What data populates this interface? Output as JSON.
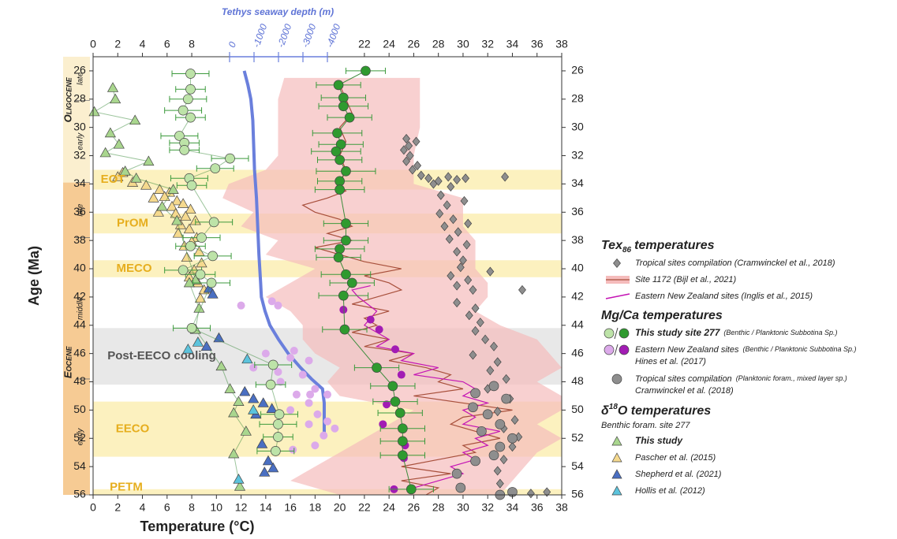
{
  "chart_data": {
    "type": "scatter",
    "x2label": "Tethys seaway depth (m)",
    "xlabel": "Temperature (°C)",
    "ylabel": "Age (Ma)",
    "xlim": [
      0,
      38
    ],
    "xticks": [
      0,
      2,
      4,
      6,
      8,
      10,
      12,
      14,
      16,
      18,
      20,
      22,
      24,
      26,
      28,
      30,
      32,
      34,
      36,
      38
    ],
    "x2lim": [
      5580,
      -13580
    ],
    "x2ticks": [
      0,
      -1000,
      -2000,
      -3000,
      -4000
    ],
    "ylim": [
      56,
      25
    ],
    "yticks": [
      26,
      28,
      30,
      32,
      34,
      36,
      38,
      40,
      42,
      44,
      46,
      48,
      50,
      52,
      54,
      56
    ],
    "epochs": [
      {
        "label": "Oligocene",
        "from": 25,
        "to": 33.9,
        "color": "#fbefcf"
      },
      {
        "label": "Eocene",
        "from": 33.9,
        "to": 56,
        "color": "#f6cb94"
      }
    ],
    "stages": [
      {
        "label": "late",
        "from": 25,
        "to": 28.1
      },
      {
        "label": "early",
        "from": 28.1,
        "to": 33.9
      },
      {
        "label": "late",
        "from": 33.9,
        "to": 37.8
      },
      {
        "label": "middle",
        "from": 37.8,
        "to": 47.8
      },
      {
        "label": "early",
        "from": 47.8,
        "to": 56
      }
    ],
    "bands": [
      {
        "label": "EOT",
        "from": 33.0,
        "to": 34.4,
        "color": "#fbeeb4"
      },
      {
        "label": "PrOM",
        "from": 36.1,
        "to": 37.5,
        "color": "#fbeeb4"
      },
      {
        "label": "MECO",
        "from": 39.4,
        "to": 40.6,
        "color": "#fbeeb4"
      },
      {
        "label": "Post-EECO cooling",
        "from": 44.2,
        "to": 48.2,
        "color": "#e4e4e4"
      },
      {
        "label": "EECO",
        "from": 49.4,
        "to": 53.3,
        "color": "#fbeeb4"
      },
      {
        "label": "PETM",
        "from": 55.6,
        "to": 56,
        "color": "#fbeeb4"
      }
    ],
    "series": [
      {
        "marker": "area",
        "color": "#f5bcbc",
        "y": [
          26.5,
          28,
          30,
          32,
          33,
          34,
          35,
          36,
          37,
          38,
          39,
          40,
          41,
          42,
          43,
          44,
          45,
          46,
          47,
          48,
          49,
          50,
          51,
          52,
          53,
          54,
          55,
          56
        ],
        "x_min": [
          15.5,
          15,
          15,
          15,
          14,
          11,
          10.5,
          13,
          12,
          15,
          14,
          18,
          16,
          14,
          16,
          17,
          17,
          18,
          20,
          19,
          20,
          26,
          24,
          22,
          20,
          18,
          16,
          20
        ],
        "x_max": [
          26.5,
          26.5,
          26.5,
          26,
          26,
          26,
          30,
          30,
          30,
          31,
          31,
          31,
          32,
          32,
          31,
          33,
          36,
          37,
          38,
          36,
          38,
          38,
          36,
          38,
          36,
          35,
          34,
          33
        ]
      },
      {
        "marker": "line",
        "color": "#a8503c",
        "y": [
          27,
          28,
          29,
          30,
          31,
          32,
          33,
          34,
          34.5,
          35,
          35.5,
          36,
          36.5,
          37,
          37.5,
          38,
          38.5,
          39,
          39.5,
          40,
          40.5,
          41,
          41.5,
          42,
          42.5,
          43,
          43.5,
          44,
          44.5,
          45,
          45.5,
          46,
          46.5,
          47,
          47.5,
          48,
          48.5,
          49,
          49.5,
          50,
          50.5,
          51,
          51.5,
          52,
          52.5,
          53,
          53.5,
          54,
          54.5,
          55,
          55.5,
          56
        ],
        "x": [
          20,
          20.5,
          21,
          20,
          20.5,
          20,
          20.5,
          20,
          20.5,
          19,
          17,
          18,
          20,
          21,
          19,
          21,
          18,
          20,
          22,
          25,
          22,
          24,
          25,
          23,
          21,
          24,
          22,
          23,
          21,
          24,
          22,
          26,
          24,
          27,
          29,
          28,
          30,
          26,
          30,
          34,
          30,
          29,
          31,
          33,
          30,
          31,
          28,
          25,
          29,
          25,
          28,
          27
        ]
      },
      {
        "marker": "line",
        "color": "#c414b4",
        "y": [
          41.2,
          41.5,
          42,
          43,
          44,
          45,
          45.5,
          46,
          46.5,
          47,
          47.5,
          48,
          48.5,
          49,
          49.5,
          50,
          50.5,
          51,
          51.5,
          52,
          52.5,
          53,
          53.5,
          54,
          54.5,
          55,
          55.5
        ],
        "x": [
          22.5,
          21,
          21.5,
          23,
          22,
          24,
          23,
          26,
          25,
          28,
          26,
          30,
          31,
          30,
          32,
          30,
          31,
          30,
          33,
          31,
          32,
          30,
          31,
          29,
          30,
          28,
          26
        ]
      },
      {
        "marker": "line",
        "color": "#6a7fdc",
        "axis": "x2",
        "y": [
          26,
          27,
          28,
          29.5,
          31,
          33,
          35,
          37,
          39,
          41,
          42,
          43,
          44,
          45,
          46,
          47,
          47.8,
          48.5,
          49.5,
          51,
          52
        ],
        "x": [
          -600,
          -750,
          -870,
          -950,
          -980,
          -1020,
          -1100,
          -1150,
          -1200,
          -1270,
          -1300,
          -1450,
          -1650,
          -2000,
          -2400,
          -2900,
          -3350,
          -3800,
          -3870,
          -3870,
          -3870
        ]
      },
      {
        "marker": "diamond",
        "color": "#8e8e8e",
        "y": [
          31.3,
          31.6,
          32.0,
          32.4,
          32.7,
          33.0,
          33.4,
          33.6,
          33.8,
          33.5,
          33.7,
          34.0,
          33.6,
          34.2,
          33.5,
          34.8,
          35.5,
          36.1,
          36.5,
          37.0,
          37.4,
          37.9,
          38.3,
          38.8,
          39.4,
          39.9,
          40.5,
          40.8,
          41.2,
          41.5,
          42.4,
          42.8,
          43.3,
          43.8,
          44.4,
          45.0,
          45.5,
          46.1,
          46.6,
          47.2,
          47.8,
          48.5,
          49.2,
          50.1,
          50.7,
          51.3,
          51.9,
          52.6,
          53.5,
          54.3,
          55.2,
          55.9,
          55.8,
          30.8,
          31.0,
          41.5,
          40.2,
          35.2,
          36.8
        ],
        "x": [
          25.6,
          25.2,
          25.7,
          25.4,
          26.3,
          25.9,
          26.6,
          27.2,
          28.0,
          28.8,
          29.5,
          27.6,
          30.2,
          29.0,
          33.4,
          28.2,
          28.7,
          28.1,
          29.2,
          28.5,
          29.6,
          28.9,
          30.3,
          29.5,
          30.0,
          29.8,
          29.0,
          30.4,
          29.5,
          30.8,
          29.5,
          31.0,
          30.5,
          31.4,
          31.0,
          31.8,
          32.5,
          30.8,
          32.8,
          32.2,
          33.5,
          32.0,
          33.8,
          32.8,
          34.2,
          33.3,
          34.5,
          34.0,
          33.3,
          32.8,
          33.0,
          35.5,
          36.8,
          25.4,
          26.2,
          34.8,
          32.2,
          30.1,
          30.4
        ]
      },
      {
        "marker": "circle",
        "color": "#8e8e8e",
        "y": [
          48.3,
          48.8,
          49.2,
          49.8,
          50.3,
          51.0,
          51.5,
          52.0,
          52.6,
          53.2,
          53.6,
          54.5,
          55.5,
          55.8,
          56.0
        ],
        "x": [
          32.5,
          31.0,
          33.5,
          30.8,
          32.0,
          33.0,
          31.5,
          34.0,
          33.0,
          32.5,
          31.0,
          29.5,
          29.8,
          34.0,
          33.0
        ]
      },
      {
        "marker": "dot",
        "color": "#dcaaea",
        "y": [
          42.3,
          42.6,
          42.6,
          45.8,
          46.0,
          46.3,
          46.5,
          47.0,
          47.3,
          47.5,
          48.0,
          48.5,
          48.9,
          48.9,
          48.9,
          49.5,
          50.0,
          50.3,
          50.8,
          51.0,
          51.3,
          51.8,
          52.5,
          52.8
        ],
        "x": [
          14.5,
          12.0,
          15.0,
          16.3,
          14.0,
          16.0,
          17.5,
          13.0,
          15.0,
          17.0,
          15.2,
          18.0,
          16.5,
          17.6,
          19.0,
          17.5,
          16.0,
          18.2,
          19.0,
          17.5,
          19.6,
          18.7,
          18.0,
          16.2
        ]
      },
      {
        "marker": "dot",
        "color": "#a21cb4",
        "y": [
          42.9,
          43.6,
          44.3,
          45.7,
          47.5,
          49.6,
          51.0,
          52.5,
          53.4,
          55.6
        ],
        "x": [
          20.3,
          22.5,
          23.2,
          24.5,
          25.0,
          23.8,
          23.5,
          25.3,
          25.2,
          24.4
        ]
      },
      {
        "marker": "triangle",
        "color": "#f5d98e",
        "y": [
          33.2,
          33.5,
          33.9,
          34.1,
          34.4,
          34.6,
          34.9,
          35.2,
          35.4,
          35.6,
          35.8,
          36.1,
          36.3,
          36.6,
          36.9,
          37.2,
          37.5,
          37.8,
          38.1,
          38.4,
          38.8,
          39.2,
          39.6,
          40.1,
          40.6,
          41.0,
          41.5,
          42.1,
          35.0,
          36.0
        ],
        "x": [
          2.4,
          2.0,
          3.2,
          4.3,
          5.4,
          6.2,
          5.8,
          6.8,
          7.3,
          6.4,
          7.9,
          6.7,
          7.5,
          8.3,
          7.1,
          7.8,
          6.9,
          8.4,
          8.0,
          7.4,
          8.6,
          7.6,
          8.8,
          8.2,
          7.8,
          8.5,
          9.0,
          8.7,
          4.9,
          5.3
        ]
      },
      {
        "marker": "triangle",
        "color": "#a9d68e",
        "connect": true,
        "y": [
          27.2,
          28.0,
          28.9,
          29.5,
          30.4,
          31.2,
          31.8,
          32.4,
          33.1,
          33.6,
          34.4,
          35.6,
          36.6,
          40.8,
          41.0,
          42.8,
          44.3,
          46.9,
          48.5,
          49.4,
          50.2,
          51.5,
          53.1,
          55.4
        ],
        "x": [
          1.6,
          1.8,
          0.1,
          3.4,
          1.4,
          2.1,
          1.0,
          4.5,
          2.6,
          3.5,
          6.5,
          5.6,
          6.8,
          8.3,
          7.8,
          8.6,
          8.3,
          10.4,
          11.1,
          11.8,
          11.4,
          12.4,
          11.4,
          11.9
        ]
      },
      {
        "marker": "triangle",
        "color": "#4a6fc2",
        "y": [
          41.4,
          41.8,
          44.9,
          45.5,
          48.7,
          49.2,
          49.5,
          49.9,
          50.3,
          52.4,
          53.6,
          54.1,
          54.4
        ],
        "x": [
          9.4,
          9.7,
          10.2,
          9.2,
          12.3,
          13.0,
          13.8,
          14.5,
          13.2,
          13.7,
          14.2,
          14.6,
          13.9
        ]
      },
      {
        "marker": "triangle",
        "color": "#5cc3dc",
        "y": [
          45.2,
          45.7,
          46.4,
          50.0,
          54.9
        ],
        "x": [
          8.5,
          7.7,
          12.5,
          13.0,
          11.8
        ]
      },
      {
        "marker": "circle",
        "color": "#bde3a8",
        "connect": true,
        "y": [
          26.2,
          27.3,
          28.0,
          28.8,
          29.3,
          30.6,
          31.1,
          31.6,
          32.2,
          32.9,
          33.6,
          34.1,
          36.7,
          37.8,
          38.4,
          39.1,
          40.1,
          40.4,
          41.0,
          44.2,
          46.8,
          48.2,
          50.3,
          51.0,
          51.9,
          52.9
        ],
        "x": [
          7.9,
          7.9,
          7.7,
          7.3,
          7.9,
          7.0,
          7.4,
          7.4,
          11.1,
          9.9,
          7.8,
          8.0,
          9.8,
          8.8,
          7.9,
          9.7,
          7.3,
          8.7,
          9.6,
          8.0,
          14.6,
          14.4,
          15.1,
          15.0,
          15.0,
          14.8
        ],
        "xerr": [
          1.5,
          1.2,
          1.5,
          1.5,
          1.2,
          1.5,
          1.2,
          1.2,
          1.5,
          1.5,
          1.5,
          1.2,
          1.5,
          1.5,
          1.2,
          1.5,
          1.5,
          1.2,
          1.5,
          1.5,
          1.5,
          1.2,
          1.5,
          1.5,
          1.2,
          1.5
        ]
      },
      {
        "marker": "circle",
        "color": "#2f9a2f",
        "connect": true,
        "y": [
          26.0,
          27.0,
          27.9,
          28.5,
          29.3,
          30.4,
          31.2,
          31.7,
          32.3,
          33.1,
          33.8,
          34.4,
          36.8,
          38.0,
          38.6,
          39.2,
          40.4,
          41.0,
          41.9,
          44.3,
          47.0,
          48.3,
          49.4,
          50.2,
          51.3,
          52.2,
          53.2,
          55.6
        ],
        "x": [
          22.1,
          19.9,
          20.3,
          20.3,
          20.8,
          19.8,
          20.1,
          19.7,
          20.0,
          20.5,
          20.0,
          20.0,
          20.5,
          20.5,
          20.0,
          19.9,
          20.5,
          21.0,
          20.3,
          20.4,
          23.0,
          24.3,
          24.5,
          24.9,
          25.1,
          25.1,
          25.1,
          25.8
        ],
        "xerr": [
          1.6,
          1.8,
          1.8,
          2,
          1.8,
          2,
          1.8,
          2,
          1.8,
          2.4,
          1.8,
          2,
          1.8,
          1.8,
          2,
          1.8,
          2,
          1.8,
          2,
          1.8,
          1.8,
          1.8,
          1.8,
          1.8,
          1.8,
          1.8,
          1.8,
          1.8
        ]
      }
    ],
    "legend": [
      {
        "title": "Tex",
        "title_sub": "86",
        "title_rest": "temperatures",
        "entries": [
          {
            "label": "Tropical sites compilation (Cramwinckel et al., 2018)",
            "marker": "diamond",
            "colors": [
              "#8e8e8e"
            ]
          },
          {
            "label": "Site 1172 (Bijl et al., 2021)",
            "marker": "band",
            "colors": [
              "#f5bcbc",
              "#a8503c"
            ]
          },
          {
            "label": "Eastern New Zealand sites (Inglis et al., 2015)",
            "marker": "line",
            "colors": [
              "#c414b4"
            ]
          }
        ]
      },
      {
        "title": "Mg/Ca temperatures",
        "entries": [
          {
            "label": "This study site 277",
            "note": "(Benthic / Planktonic Subbotina Sp.)",
            "marker": "circle-pair",
            "colors": [
              "#bde3a8",
              "#2f9a2f"
            ],
            "emphasis": true
          },
          {
            "label": "Eastern New Zealand sites",
            "note": "(Benthic / Planktonic Subbotina Sp.)",
            "line2": "Hines et al. (2017)",
            "marker": "circle-pair",
            "colors": [
              "#dcaaea",
              "#a21cb4"
            ]
          },
          {
            "label": "Tropical sites compilation",
            "note": "(Planktonic foram., mixed layer sp.)",
            "line2": "Cramwinckel et al. (2018)",
            "marker": "circle",
            "colors": [
              "#8e8e8e"
            ]
          }
        ]
      },
      {
        "title": "δ",
        "title_sup": "18",
        "title_rest": "O temperatures",
        "subtitle": "Benthic foram. site 277",
        "entries": [
          {
            "label": "This study",
            "marker": "triangle",
            "colors": [
              "#a9d68e"
            ],
            "emphasis": true
          },
          {
            "label": "Pascher et al. (2015)",
            "marker": "triangle",
            "colors": [
              "#f5d98e"
            ]
          },
          {
            "label": "Shepherd et al. (2021)",
            "marker": "triangle",
            "colors": [
              "#4a6fc2"
            ]
          },
          {
            "label": "Hollis et al. (2012)",
            "marker": "triangle",
            "colors": [
              "#5cc3dc"
            ]
          }
        ]
      }
    ]
  }
}
